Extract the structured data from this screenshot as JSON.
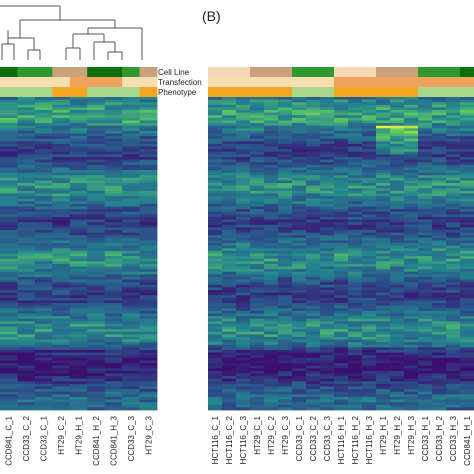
{
  "panel_label": "(B)",
  "annotation_labels": [
    "Cell Line",
    "Transfection",
    "Phenotype"
  ],
  "colors": {
    "heat_low": "#3b0f70",
    "heat_mid_low": "#2c4f8a",
    "heat_mid": "#24868e",
    "heat_high": "#5cc863",
    "heat_peak": "#e4ef3a",
    "cellline_ccd841": "#0a6e0a",
    "cellline_ccd33": "#2e9a2e",
    "cellline_ht29": "#c9a27c",
    "cellline_hct116": "#f5d9b6",
    "transfection_c": "#f7ddb2",
    "transfection_h": "#f0a15c",
    "phenotype_normal": "#a8d88a",
    "phenotype_cancer": "#f3a623"
  },
  "chart_data": [
    {
      "type": "heatmap",
      "title": "",
      "columns": [
        "CCD841_C_1",
        "CCD33_C_2",
        "CCD33_C_1",
        "HT29_C_2",
        "HT29_H_1",
        "CCD841_H_2",
        "CCD841_H_3",
        "CCD33_C_3",
        "HT29_C_3"
      ],
      "annotations": {
        "Cell Line": [
          "CCD841",
          "CCD33",
          "CCD33",
          "HT29",
          "HT29",
          "CCD841",
          "CCD841",
          "CCD33",
          "HT29"
        ],
        "Transfection": [
          "C",
          "C",
          "C",
          "C",
          "H",
          "H",
          "H",
          "C",
          "C"
        ],
        "Phenotype": [
          "Normal",
          "Normal",
          "Normal",
          "Cancer",
          "Cancer",
          "Normal",
          "Normal",
          "Normal",
          "Cancer"
        ]
      },
      "dendrogram": true
    },
    {
      "type": "heatmap",
      "title": "(B)",
      "columns": [
        "HCT116_C_1",
        "HCT116_C_2",
        "HCT116_C_3",
        "HT29_C_1",
        "HT29_C_2",
        "HT29_C_3",
        "CCD33_C_1",
        "CCD33_C_2",
        "CCD33_C_3",
        "HCT116_H_1",
        "HCT116_H_2",
        "HCT116_H_3",
        "HT29_H_1",
        "HT29_H_2",
        "HT29_H_3",
        "CCD33_H_1",
        "CCD33_H_2",
        "CCD33_H_3",
        "CCD841_H_1"
      ],
      "annotations": {
        "Cell Line": [
          "HCT116",
          "HCT116",
          "HCT116",
          "HT29",
          "HT29",
          "HT29",
          "CCD33",
          "CCD33",
          "CCD33",
          "HCT116",
          "HCT116",
          "HCT116",
          "HT29",
          "HT29",
          "HT29",
          "CCD33",
          "CCD33",
          "CCD33",
          "CCD841"
        ],
        "Transfection": [
          "C",
          "C",
          "C",
          "C",
          "C",
          "C",
          "C",
          "C",
          "C",
          "H",
          "H",
          "H",
          "H",
          "H",
          "H",
          "H",
          "H",
          "H",
          "H"
        ],
        "Phenotype": [
          "Cancer",
          "Cancer",
          "Cancer",
          "Cancer",
          "Cancer",
          "Cancer",
          "Normal",
          "Normal",
          "Normal",
          "Cancer",
          "Cancer",
          "Cancer",
          "Cancer",
          "Cancer",
          "Cancer",
          "Normal",
          "Normal",
          "Normal",
          "Normal"
        ]
      },
      "dendrogram": false
    }
  ]
}
